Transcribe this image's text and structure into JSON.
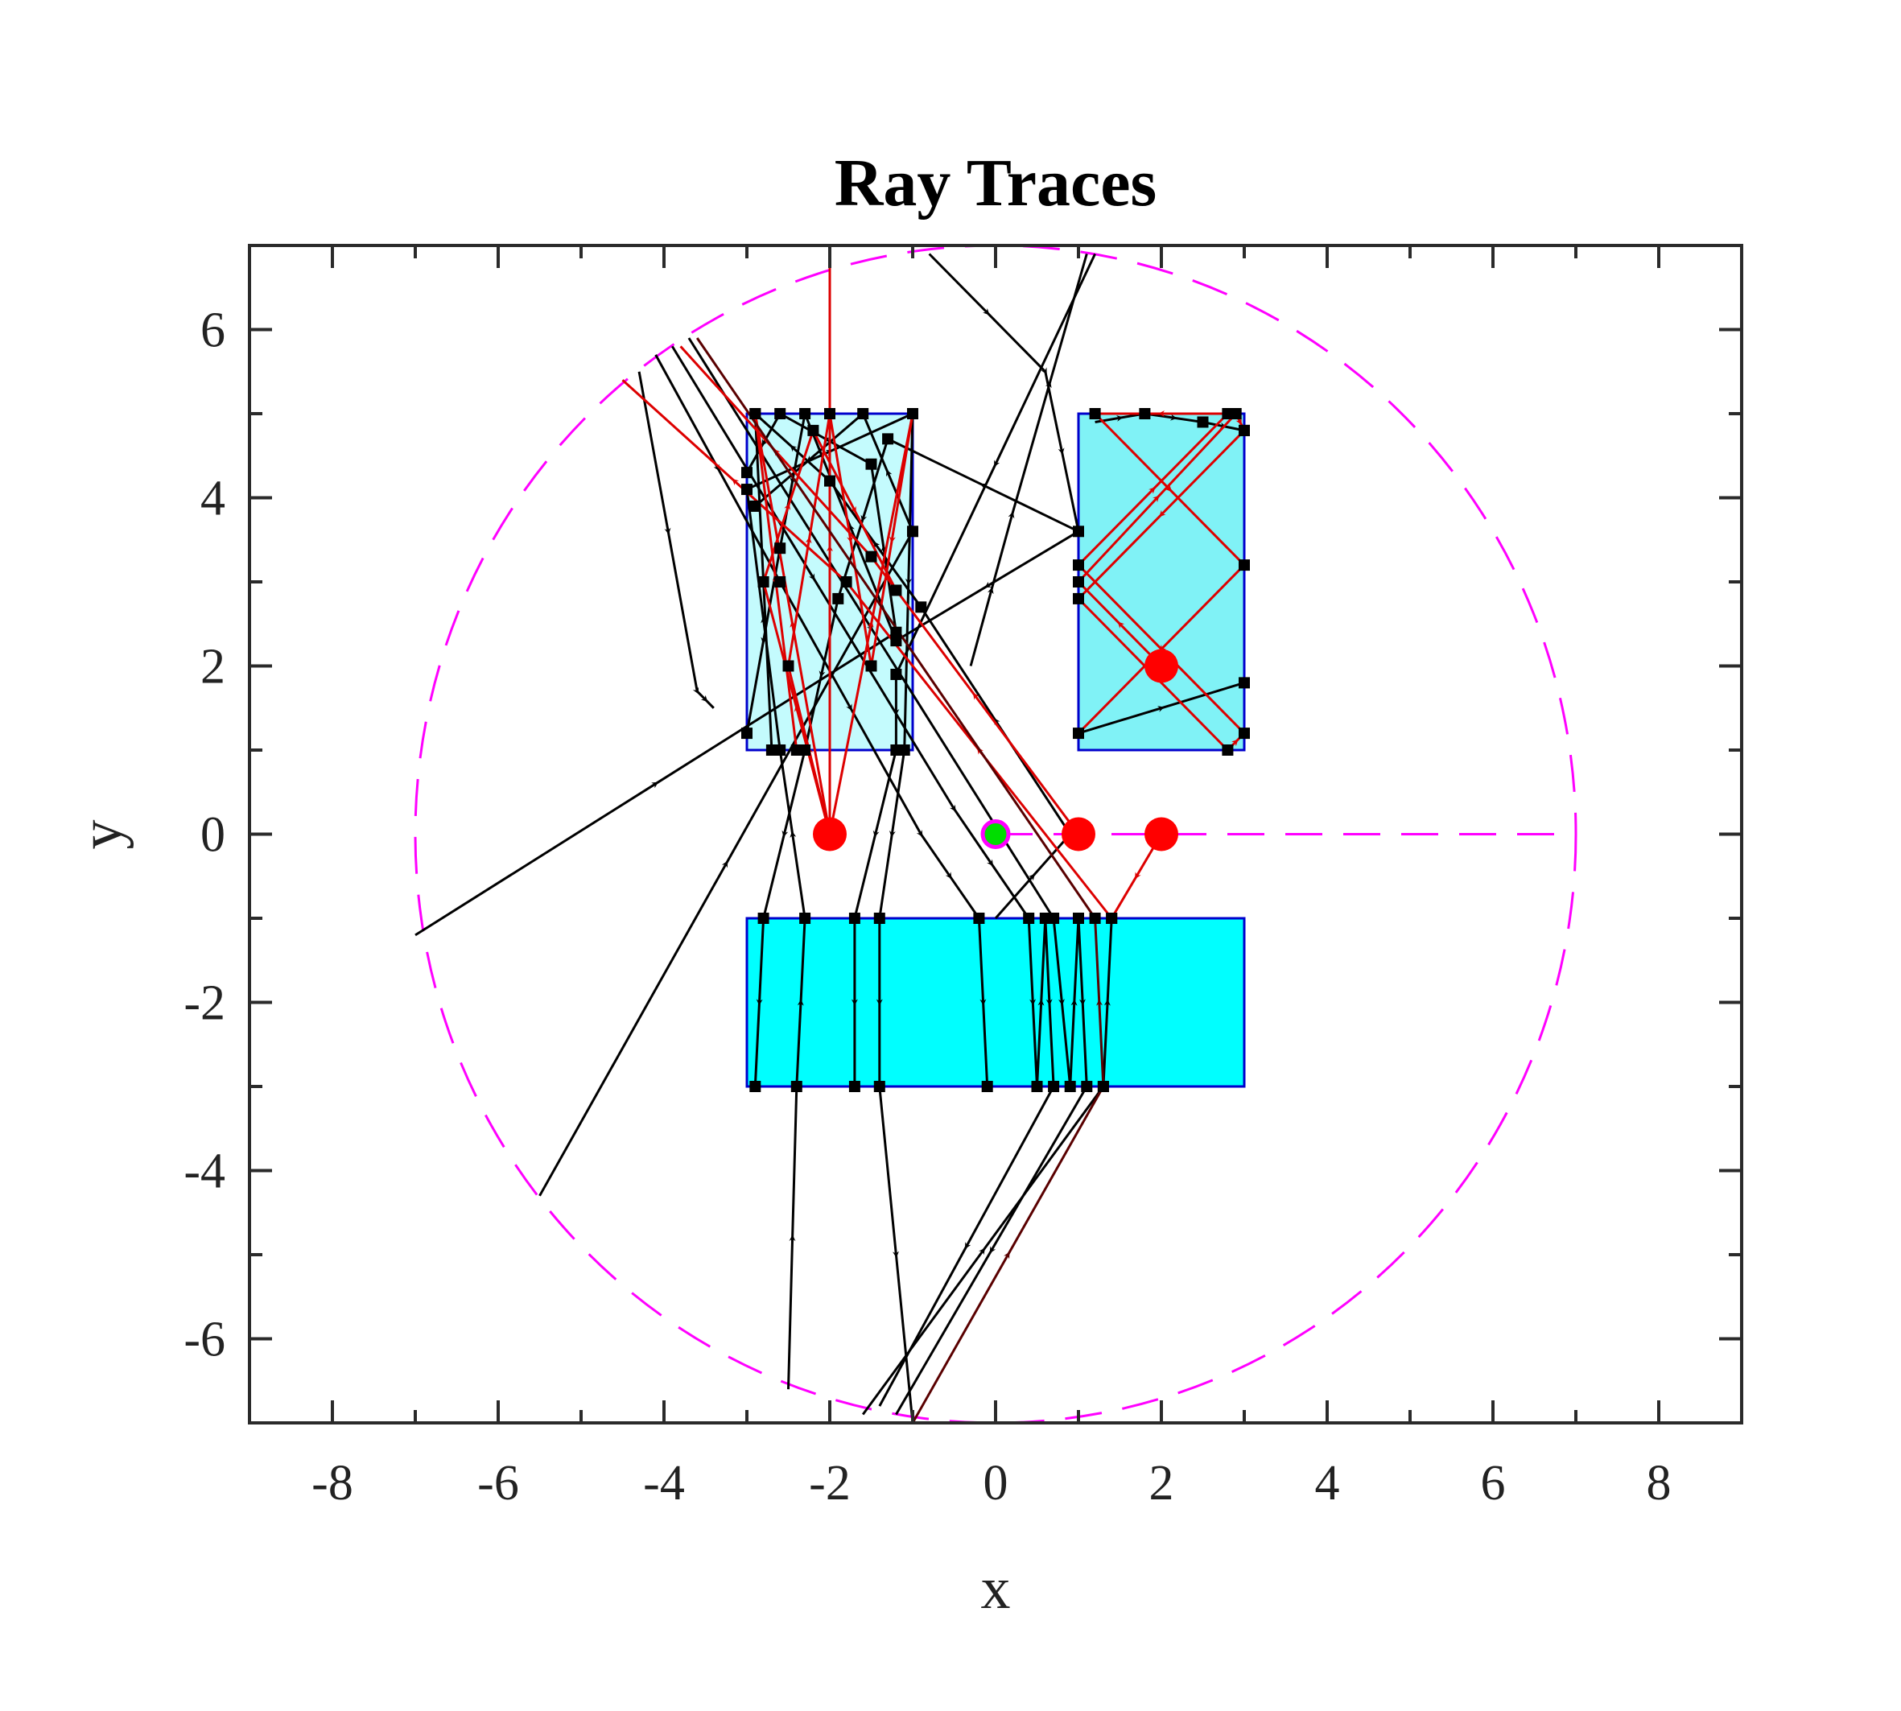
{
  "chart_data": {
    "type": "line",
    "title": "Ray Traces",
    "xlabel": "x",
    "ylabel": "y",
    "xlim": [
      -9,
      9
    ],
    "ylim": [
      -7,
      7
    ],
    "xticks": [
      -8,
      -6,
      -4,
      -2,
      0,
      2,
      4,
      6,
      8
    ],
    "yticks": [
      -6,
      -4,
      -2,
      0,
      2,
      4,
      6
    ],
    "xtick_labels": [
      "-8",
      "-6",
      "-4",
      "-2",
      "0",
      "2",
      "4",
      "6",
      "8"
    ],
    "ytick_labels": [
      "-6",
      "-4",
      "-2",
      "0",
      "2",
      "4",
      "6"
    ],
    "grid": false,
    "colors": {
      "ray_black": "#000000",
      "ray_red": "#dd0000",
      "ray_darkred": "#5a0000",
      "boundary": "#ff00ff",
      "rect_edge": "#0000cc",
      "source": "#ff0000",
      "receiver": "#00dd00"
    },
    "boundary_circle": {
      "center": [
        0,
        0
      ],
      "radius": 7,
      "style": "dashed"
    },
    "boundary_line": {
      "x": [
        0,
        7
      ],
      "y": [
        0,
        0
      ],
      "style": "dashed"
    },
    "rectangles": [
      {
        "name": "scatterer-upper-left",
        "x": [
          -3,
          -1
        ],
        "y": [
          1,
          5
        ],
        "fill": "#c4fbfd"
      },
      {
        "name": "scatterer-upper-right",
        "x": [
          1,
          3
        ],
        "y": [
          1,
          5
        ],
        "fill": "#80f2f6"
      },
      {
        "name": "scatterer-lower",
        "x": [
          -3,
          3
        ],
        "y": [
          -3,
          -1
        ],
        "fill": "#00ffff"
      }
    ],
    "sources": [
      [
        -2,
        0
      ],
      [
        1,
        0
      ],
      [
        2,
        0
      ],
      [
        2,
        2
      ]
    ],
    "receiver": [
      0,
      0
    ],
    "series": [
      {
        "color": "black",
        "points": [
          [
            -7.0,
            -1.2
          ],
          [
            -1.2,
            2.4
          ],
          [
            -1.5,
            4.4
          ],
          [
            -2.6,
            5.0
          ],
          [
            -3.0,
            4.3
          ]
        ]
      },
      {
        "color": "black",
        "points": [
          [
            -5.5,
            -4.3
          ],
          [
            -1.0,
            3.6
          ],
          [
            -1.6,
            5.0
          ],
          [
            -2.9,
            3.9
          ]
        ]
      },
      {
        "color": "black",
        "points": [
          [
            -4.3,
            5.5
          ],
          [
            -3.6,
            1.7
          ],
          [
            -3.4,
            1.5
          ]
        ]
      },
      {
        "color": "black",
        "points": [
          [
            -2.5,
            -6.6
          ],
          [
            -2.4,
            -3.0
          ],
          [
            -2.3,
            -1.0
          ],
          [
            -2.6,
            1.0
          ],
          [
            -3.0,
            4.1
          ],
          [
            -1.0,
            5.0
          ],
          [
            -1.1,
            1.0
          ],
          [
            -1.4,
            -1.0
          ],
          [
            -1.4,
            -3.0
          ],
          [
            -1.0,
            -7.0
          ]
        ]
      },
      {
        "color": "black",
        "points": [
          [
            -4.1,
            5.7
          ],
          [
            -2.6,
            3.0
          ],
          [
            -0.9,
            0.0
          ],
          [
            -0.2,
            -1.0
          ],
          [
            -0.1,
            -3.0
          ]
        ]
      },
      {
        "color": "black",
        "points": [
          [
            -3.9,
            5.8
          ],
          [
            -0.5,
            0.3
          ],
          [
            0.4,
            -1.0
          ],
          [
            0.5,
            -3.0
          ],
          [
            0.6,
            -1.0
          ],
          [
            0.7,
            -3.0
          ],
          [
            -1.4,
            -6.8
          ]
        ]
      },
      {
        "color": "black",
        "points": [
          [
            -3.7,
            5.9
          ],
          [
            0.7,
            -1.0
          ],
          [
            0.9,
            -3.0
          ],
          [
            1.0,
            -1.0
          ],
          [
            1.1,
            -3.0
          ],
          [
            -1.2,
            -6.9
          ]
        ]
      },
      {
        "color": "black",
        "points": [
          [
            -0.3,
            2.0
          ],
          [
            0.2,
            3.8
          ],
          [
            1.1,
            6.9
          ]
        ]
      },
      {
        "color": "black",
        "points": [
          [
            0.0,
            -1.0
          ],
          [
            0.9,
            0.0
          ],
          [
            -0.9,
            2.7
          ],
          [
            -2.0,
            4.2
          ],
          [
            -2.9,
            5.0
          ],
          [
            -2.7,
            1.0
          ]
        ]
      },
      {
        "color": "black",
        "points": [
          [
            -0.8,
            6.9
          ],
          [
            0.6,
            5.5
          ],
          [
            1.0,
            3.6
          ],
          [
            -1.3,
            4.7
          ],
          [
            -1.9,
            2.8
          ],
          [
            -2.3,
            1.0
          ],
          [
            -2.8,
            -1.0
          ],
          [
            -2.9,
            -3.0
          ]
        ]
      },
      {
        "color": "black",
        "points": [
          [
            1.2,
            6.9
          ],
          [
            -1.2,
            1.9
          ],
          [
            -1.2,
            1.0
          ],
          [
            -1.7,
            -1.0
          ],
          [
            -1.7,
            -3.0
          ]
        ]
      },
      {
        "color": "black",
        "points": [
          [
            -1.6,
            -6.9
          ],
          [
            1.3,
            -3.0
          ],
          [
            1.4,
            -1.0
          ]
        ]
      },
      {
        "color": "black",
        "points": [
          [
            1.0,
            3.6
          ],
          [
            -1.2,
            2.3
          ],
          [
            -2.3,
            5.0
          ],
          [
            -2.6,
            3.4
          ],
          [
            -3.0,
            1.2
          ]
        ]
      },
      {
        "color": "black",
        "points": [
          [
            1.0,
            1.2
          ],
          [
            3.0,
            1.8
          ]
        ]
      },
      {
        "color": "black",
        "points": [
          [
            1.2,
            4.9
          ],
          [
            1.8,
            5.0
          ],
          [
            2.5,
            4.9
          ],
          [
            3.0,
            4.8
          ]
        ]
      },
      {
        "color": "darkred",
        "points": [
          [
            -1.0,
            -7.0
          ],
          [
            1.3,
            -3.0
          ],
          [
            1.2,
            -1.0
          ]
        ]
      },
      {
        "color": "red",
        "points": [
          [
            -2.0,
            0.0
          ],
          [
            -2.0,
            6.8
          ]
        ]
      },
      {
        "color": "red",
        "points": [
          [
            -2.0,
            0.0
          ],
          [
            -2.9,
            5.0
          ],
          [
            -2.4,
            1.0
          ]
        ]
      },
      {
        "color": "red",
        "points": [
          [
            -2.0,
            0.0
          ],
          [
            -1.0,
            5.0
          ],
          [
            -1.5,
            2.0
          ]
        ]
      },
      {
        "color": "red",
        "points": [
          [
            -2.0,
            0.0
          ],
          [
            -2.5,
            2.0
          ],
          [
            -2.0,
            5.0
          ],
          [
            -1.5,
            2.0
          ]
        ]
      },
      {
        "color": "red",
        "points": [
          [
            -2.0,
            0.0
          ],
          [
            -2.8,
            3.0
          ],
          [
            -2.2,
            4.8
          ],
          [
            -1.2,
            2.9
          ]
        ]
      },
      {
        "color": "red",
        "points": [
          [
            2.0,
            0.0
          ],
          [
            1.4,
            -1.0
          ],
          [
            -1.8,
            3.0
          ],
          [
            -4.5,
            5.4
          ]
        ]
      },
      {
        "color": "red",
        "points": [
          [
            1.0,
            0.0
          ],
          [
            -1.5,
            3.3
          ],
          [
            -3.8,
            5.8
          ]
        ]
      },
      {
        "color": "darkred",
        "points": [
          [
            1.2,
            -1.0
          ],
          [
            -3.6,
            5.9
          ]
        ]
      },
      {
        "color": "red",
        "points": [
          [
            2.0,
            2.0
          ],
          [
            1.0,
            3.0
          ],
          [
            2.9,
            5.0
          ],
          [
            3.0,
            4.8
          ],
          [
            1.0,
            2.8
          ],
          [
            2.8,
            1.0
          ],
          [
            3.0,
            1.2
          ],
          [
            1.0,
            3.2
          ],
          [
            2.8,
            5.0
          ],
          [
            1.2,
            5.0
          ],
          [
            3.0,
            3.2
          ],
          [
            1.0,
            1.2
          ]
        ]
      }
    ]
  }
}
